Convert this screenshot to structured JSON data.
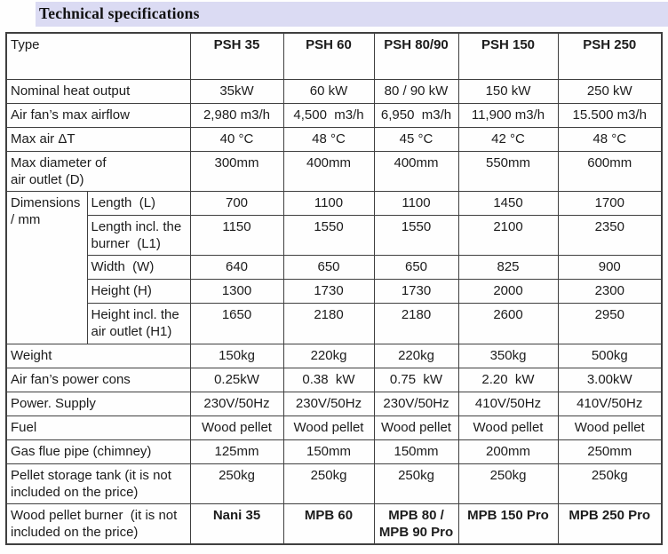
{
  "title": "Technical specifications",
  "colors": {
    "title_highlight": "#dbdbf3",
    "table_border": "#3f3f3f",
    "text": "#1c1c1c"
  },
  "table": {
    "type_label": "Type",
    "columns": [
      "PSH 35",
      "PSH 60",
      "PSH 80/90",
      "PSH 150",
      "PSH 250"
    ],
    "rows_before_group": [
      {
        "id": "nominal-heat-output",
        "label": "Nominal heat output",
        "values": [
          "35kW",
          "60 kW",
          "80 / 90 kW",
          "150 kW",
          "250 kW"
        ]
      },
      {
        "id": "air-fan-max-airflow",
        "label": "Air fan’s max airflow",
        "values": [
          "2,980 m3/h",
          "4,500  m3/h",
          "6,950  m3/h",
          "11,900 m3/h",
          "15.500 m3/h"
        ]
      },
      {
        "id": "max-air-delta-t",
        "label": "Max air ΔT",
        "values": [
          "40 °C",
          "48 °C",
          "45 °C",
          "42 °C",
          "48 °C"
        ]
      },
      {
        "id": "max-diameter-air-outlet",
        "label": "Max diameter of\nair outlet (D)",
        "values": [
          "300mm",
          "400mm",
          "400mm",
          "550mm",
          "600mm"
        ]
      }
    ],
    "dimensions_group": {
      "label": "Dimensions\n/ mm",
      "subrows": [
        {
          "id": "length",
          "label": "Length  (L)",
          "values": [
            "700",
            "1100",
            "1100",
            "1450",
            "1700"
          ]
        },
        {
          "id": "length-incl-burner",
          "label": "Length incl. the\nburner  (L1)",
          "values": [
            "1150",
            "1550",
            "1550",
            "2100",
            "2350"
          ]
        },
        {
          "id": "width",
          "label": "Width  (W)",
          "values": [
            "640",
            "650",
            "650",
            "825",
            "900"
          ]
        },
        {
          "id": "height",
          "label": "Height (H)",
          "values": [
            "1300",
            "1730",
            "1730",
            "2000",
            "2300"
          ]
        },
        {
          "id": "height-incl-air-outlet",
          "label": "Height incl. the\nair outlet (H1)",
          "values": [
            "1650",
            "2180",
            "2180",
            "2600",
            "2950"
          ]
        }
      ]
    },
    "rows_after_group": [
      {
        "id": "weight",
        "label": "Weight",
        "values": [
          "150kg",
          "220kg",
          "220kg",
          "350kg",
          "500kg"
        ]
      },
      {
        "id": "air-fan-power-cons",
        "label": "Air fan’s power cons",
        "values": [
          "0.25kW",
          "0.38  kW",
          "0.75  kW",
          "2.20  kW",
          "3.00kW"
        ]
      },
      {
        "id": "power-supply",
        "label": "Power. Supply",
        "values": [
          "230V/50Hz",
          "230V/50Hz",
          "230V/50Hz",
          "410V/50Hz",
          "410V/50Hz"
        ]
      },
      {
        "id": "fuel",
        "label": "Fuel",
        "values": [
          "Wood pellet",
          "Wood pellet",
          "Wood pellet",
          "Wood pellet",
          "Wood pellet"
        ]
      },
      {
        "id": "gas-flue-pipe",
        "label": "Gas flue pipe (chimney)",
        "values": [
          "125mm",
          "150mm",
          "150mm",
          "200mm",
          "250mm"
        ]
      },
      {
        "id": "pellet-storage-tank",
        "label": "Pellet storage tank (it is not\nincluded on the price)",
        "values": [
          "250kg",
          "250kg",
          "250kg",
          "250kg",
          "250kg"
        ]
      },
      {
        "id": "wood-pellet-burner",
        "label": "Wood pellet burner  (it is not\nincluded on the price)",
        "values": [
          "Nani 35",
          "MPB 60",
          "MPB 80 /\nMPB 90 Pro",
          "MPB 150 Pro",
          "MPB 250 Pro"
        ],
        "bold_values": true
      }
    ]
  }
}
